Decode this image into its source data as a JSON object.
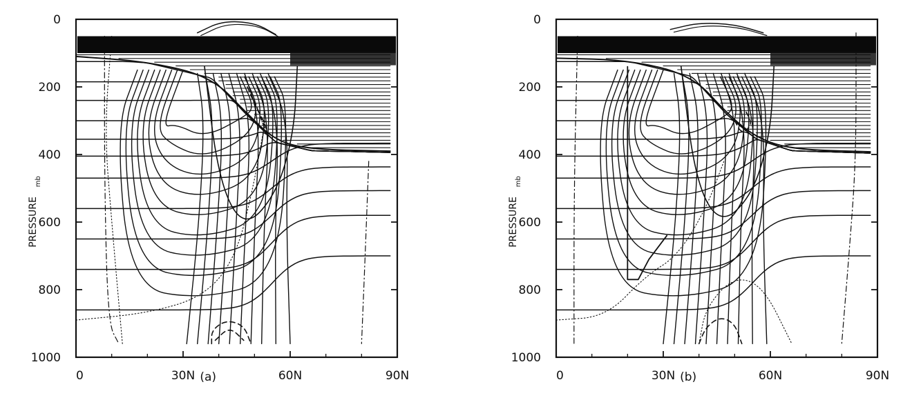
{
  "chart_data": [
    {
      "type": "line",
      "panel_label": "(a)",
      "xlabel": "",
      "ylabel": "PRESSURE",
      "y_unit": "mb",
      "xlim": [
        0,
        90
      ],
      "ylim": [
        1000,
        0
      ],
      "x_ticks": [
        0,
        30,
        60,
        90
      ],
      "x_tick_labels": [
        "0",
        "30N",
        "60N",
        "90N"
      ],
      "y_ticks": [
        0,
        200,
        400,
        600,
        800,
        1000
      ],
      "y_tick_labels": [
        "0",
        "200",
        "400",
        "600",
        "800",
        "1000"
      ],
      "top_band_mb": [
        50,
        100
      ],
      "tropopause": [
        [
          0,
          110
        ],
        [
          20,
          125
        ],
        [
          38,
          170
        ],
        [
          48,
          280
        ],
        [
          56,
          360
        ],
        [
          66,
          385
        ],
        [
          88,
          390
        ]
      ],
      "family_a": {
        "levels": [
          [
            60,
            60
          ],
          [
            100,
            85
          ],
          [
            95,
            120
          ],
          [
            95,
            155
          ],
          [
            100,
            200
          ],
          [
            150,
            260
          ],
          [
            130,
            320
          ],
          [
            140,
            400
          ],
          [
            150,
            480
          ],
          [
            150,
            560
          ],
          [
            120,
            655
          ],
          [
            90,
            750
          ],
          [
            50,
            850
          ],
          [
            50,
            940
          ]
        ]
      },
      "family_b": {
        "x_bottom": [
          31,
          34,
          37,
          40,
          43,
          46,
          49,
          52,
          56,
          60
        ],
        "y_top": 160,
        "x_top": 34
      },
      "outer_curve": [
        [
          36,
          140
        ],
        [
          40,
          480
        ],
        [
          47,
          620
        ],
        [
          56,
          520
        ],
        [
          61,
          340
        ],
        [
          62,
          140
        ]
      ],
      "dotted_contours": [
        [
          [
            10,
            50
          ],
          [
            8,
            330
          ],
          [
            10,
            600
          ],
          [
            13,
            960
          ]
        ],
        [
          [
            0,
            890
          ],
          [
            20,
            870
          ],
          [
            36,
            820
          ],
          [
            45,
            700
          ],
          [
            50,
            480
          ],
          [
            53,
            300
          ]
        ]
      ],
      "dashed_contours": [
        [
          [
            38,
            960
          ],
          [
            38,
            920
          ],
          [
            42,
            890
          ],
          [
            47,
            905
          ],
          [
            49,
            960
          ]
        ],
        [
          [
            39,
            950
          ],
          [
            43,
            910
          ],
          [
            47,
            950
          ]
        ],
        [
          [
            48,
            200
          ],
          [
            50,
            250
          ],
          [
            53,
            310
          ],
          [
            54,
            350
          ],
          [
            52,
            300
          ],
          [
            50,
            240
          ]
        ]
      ],
      "dash_dot_contours": [
        [
          [
            8,
            50
          ],
          [
            8,
            500
          ],
          [
            9,
            900
          ],
          [
            12,
            960
          ]
        ],
        [
          [
            82,
            420
          ],
          [
            81,
            700
          ],
          [
            80,
            960
          ]
        ]
      ],
      "top_bump": [
        [
          34,
          40
        ],
        [
          41,
          5
        ],
        [
          50,
          10
        ],
        [
          56,
          45
        ]
      ]
    },
    {
      "type": "line",
      "panel_label": "(b)",
      "xlabel": "",
      "ylabel": "PRESSURE",
      "y_unit": "mb",
      "xlim": [
        0,
        90
      ],
      "ylim": [
        1000,
        0
      ],
      "x_ticks": [
        0,
        30,
        60,
        90
      ],
      "x_tick_labels": [
        "0",
        "30N",
        "60N",
        "90N"
      ],
      "y_ticks": [
        0,
        200,
        400,
        600,
        800,
        1000
      ],
      "y_tick_labels": [
        "0",
        "200",
        "400",
        "600",
        "800",
        "1000"
      ],
      "top_band_mb": [
        50,
        100
      ],
      "tropopause": [
        [
          0,
          115
        ],
        [
          20,
          120
        ],
        [
          38,
          165
        ],
        [
          48,
          280
        ],
        [
          56,
          350
        ],
        [
          66,
          385
        ],
        [
          88,
          392
        ]
      ],
      "family_a": {
        "levels": [
          [
            60,
            60
          ],
          [
            100,
            85
          ],
          [
            95,
            120
          ],
          [
            95,
            155
          ],
          [
            100,
            200
          ],
          [
            150,
            260
          ],
          [
            130,
            320
          ],
          [
            140,
            400
          ],
          [
            150,
            480
          ],
          [
            150,
            560
          ],
          [
            120,
            655
          ],
          [
            100,
            750
          ],
          [
            60,
            850
          ],
          [
            50,
            940
          ]
        ]
      },
      "family_b": {
        "x_bottom": [
          30,
          33,
          36,
          39,
          42,
          45,
          48,
          51,
          55,
          59
        ],
        "y_top": 160,
        "x_top": 33
      },
      "outer_curve": [
        [
          35,
          140
        ],
        [
          39,
          480
        ],
        [
          46,
          610
        ],
        [
          55,
          520
        ],
        [
          60,
          340
        ],
        [
          61,
          140
        ]
      ],
      "dotted_contours": [
        [
          [
            0,
            890
          ],
          [
            14,
            880
          ],
          [
            25,
            760
          ],
          [
            34,
            700
          ],
          [
            42,
            560
          ],
          [
            47,
            420
          ]
        ],
        [
          [
            40,
            960
          ],
          [
            42,
            850
          ],
          [
            50,
            760
          ],
          [
            58,
            790
          ],
          [
            66,
            960
          ]
        ]
      ],
      "dashed_contours": [
        [
          [
            40,
            960
          ],
          [
            42,
            910
          ],
          [
            46,
            880
          ],
          [
            50,
            900
          ],
          [
            52,
            960
          ]
        ],
        [
          [
            50,
            300
          ],
          [
            52,
            340
          ],
          [
            55,
            310
          ],
          [
            53,
            270
          ]
        ]
      ],
      "dash_dot_contours": [
        [
          [
            6,
            50
          ],
          [
            5,
            500
          ],
          [
            5,
            960
          ]
        ],
        [
          [
            84,
            40
          ],
          [
            84,
            420
          ],
          [
            82,
            700
          ],
          [
            80,
            960
          ]
        ]
      ],
      "top_bump": [
        [
          32,
          30
        ],
        [
          40,
          10
        ],
        [
          50,
          15
        ],
        [
          58,
          40
        ]
      ],
      "steps": [
        [
          20,
          140
        ],
        [
          20,
          770
        ],
        [
          23,
          770
        ],
        [
          26,
          710
        ],
        [
          31,
          640
        ]
      ]
    }
  ]
}
